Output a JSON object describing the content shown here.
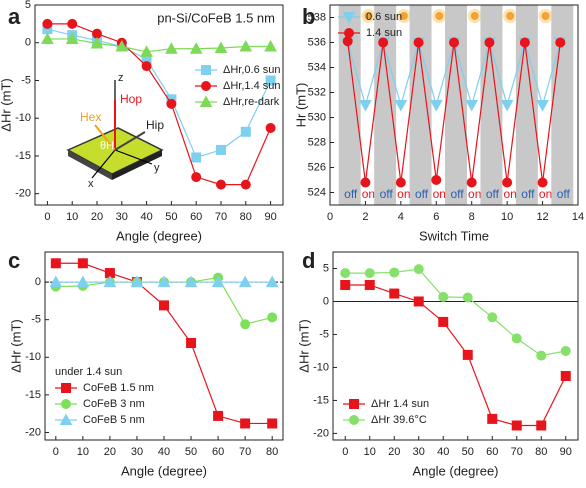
{
  "chart_data": [
    {
      "type": "line",
      "label": "a",
      "title": "pn-Si/CoFeB 1.5 nm",
      "xlabel": "Angle (degree)",
      "ylabel": "ΔHr (mT)",
      "x": [
        0,
        10,
        20,
        30,
        40,
        50,
        60,
        70,
        80,
        90
      ],
      "xlim": [
        -5,
        95
      ],
      "xticks": [
        0,
        10,
        20,
        30,
        40,
        50,
        60,
        70,
        80,
        90
      ],
      "ylim": [
        -21.5,
        5
      ],
      "yticks": [
        5,
        0,
        -5,
        -10,
        -15,
        -20
      ],
      "legend": "center right",
      "inset_labels": [
        "z",
        "Hop",
        "Hex",
        "Hip",
        "θH",
        "x",
        "y"
      ],
      "series": [
        {
          "name": "ΔHr,0.6 sun",
          "color": "#7fcfee",
          "marker": "square",
          "values": [
            1.8,
            1.0,
            0.3,
            -0.5,
            -2.2,
            -7.5,
            -15.2,
            -14.2,
            -11.8,
            -5.0
          ]
        },
        {
          "name": "ΔHr,1.4 sun",
          "color": "#e8141c",
          "marker": "circle",
          "values": [
            2.5,
            2.5,
            1.2,
            0,
            -3.1,
            -8.1,
            -17.8,
            -18.8,
            -18.8,
            -11.3
          ]
        },
        {
          "name": "ΔHr,re-dark",
          "color": "#7ed957",
          "marker": "triangle",
          "values": [
            0.5,
            0.5,
            -0.1,
            -0.5,
            -1.2,
            -0.8,
            -0.8,
            -0.7,
            -0.5,
            -0.5
          ]
        }
      ]
    },
    {
      "type": "line",
      "label": "b",
      "xlabel": "Switch Time",
      "ylabel": "Hr (mT)",
      "x": [
        1,
        2,
        3,
        4,
        5,
        6,
        7,
        8,
        9,
        10,
        11,
        12,
        13
      ],
      "xlim": [
        0,
        14
      ],
      "xticks": [
        0,
        2,
        4,
        6,
        8,
        10,
        12,
        14
      ],
      "ylim": [
        523,
        539
      ],
      "yticks": [
        524,
        526,
        528,
        530,
        532,
        534,
        536,
        538
      ],
      "legend": "upper left",
      "state_labels": [
        "off",
        "on",
        "off",
        "on",
        "off",
        "on",
        "off",
        "on",
        "off",
        "on",
        "off",
        "on",
        "off"
      ],
      "series": [
        {
          "name": "0.6 sun",
          "color": "#7fcfee",
          "marker": "triangle-down",
          "values": [
            536,
            531,
            536,
            531,
            536,
            531,
            536,
            531,
            536,
            531,
            536,
            531,
            536
          ]
        },
        {
          "name": "1.4 sun",
          "color": "#e8141c",
          "marker": "circle",
          "values": [
            536.1,
            524.8,
            536,
            524.8,
            536,
            525,
            536,
            524.8,
            536,
            524.8,
            536,
            524.8,
            536
          ]
        }
      ]
    },
    {
      "type": "line",
      "label": "c",
      "xlabel": "Angle (degree)",
      "ylabel": "ΔHr (mT)",
      "x": [
        0,
        10,
        20,
        30,
        40,
        50,
        60,
        70,
        80
      ],
      "xlim": [
        -4,
        84
      ],
      "xticks": [
        0,
        10,
        20,
        30,
        40,
        50,
        60,
        70,
        80
      ],
      "ylim": [
        -21,
        4
      ],
      "yticks": [
        0,
        -5,
        -10,
        -15,
        -20
      ],
      "zero_line": "dashed",
      "legend": "lower left",
      "legend_title": "under 1.4 sun",
      "series": [
        {
          "name": "CoFeB 1.5 nm",
          "color": "#e8141c",
          "marker": "square",
          "values": [
            2.5,
            2.5,
            1.2,
            0,
            -3.1,
            -8.1,
            -17.8,
            -18.8,
            -18.8
          ]
        },
        {
          "name": "CoFeB 3 nm",
          "color": "#7be05a",
          "marker": "circle",
          "values": [
            -0.6,
            -0.5,
            0,
            0,
            0,
            0,
            0.6,
            -5.6,
            -4.7
          ]
        },
        {
          "name": "CoFeB 5 nm",
          "color": "#7fcfee",
          "marker": "triangle",
          "values": [
            0,
            0,
            0,
            0,
            0,
            0,
            0,
            0,
            0
          ]
        }
      ]
    },
    {
      "type": "line",
      "label": "d",
      "xlabel": "Angle (degree)",
      "ylabel": "ΔHr (mT)",
      "x": [
        0,
        10,
        20,
        30,
        40,
        50,
        60,
        70,
        80,
        90
      ],
      "xlim": [
        -5,
        95
      ],
      "xticks": [
        0,
        10,
        20,
        30,
        40,
        50,
        60,
        70,
        80,
        90
      ],
      "ylim": [
        -21,
        7.5
      ],
      "yticks": [
        5,
        0,
        -5,
        -10,
        -15,
        -20
      ],
      "zero_line": "solid",
      "legend": "lower left",
      "series": [
        {
          "name": "ΔHr 1.4 sun",
          "color": "#e8141c",
          "marker": "square",
          "values": [
            2.5,
            2.5,
            1.2,
            0,
            -3.1,
            -8.1,
            -17.8,
            -18.8,
            -18.8,
            -11.3
          ]
        },
        {
          "name": "ΔHr 39.6°C",
          "color": "#86e06b",
          "marker": "circle",
          "values": [
            4.3,
            4.3,
            4.4,
            4.9,
            0.7,
            0.6,
            -2.4,
            -5.6,
            -8.2,
            -7.5
          ]
        }
      ]
    }
  ]
}
